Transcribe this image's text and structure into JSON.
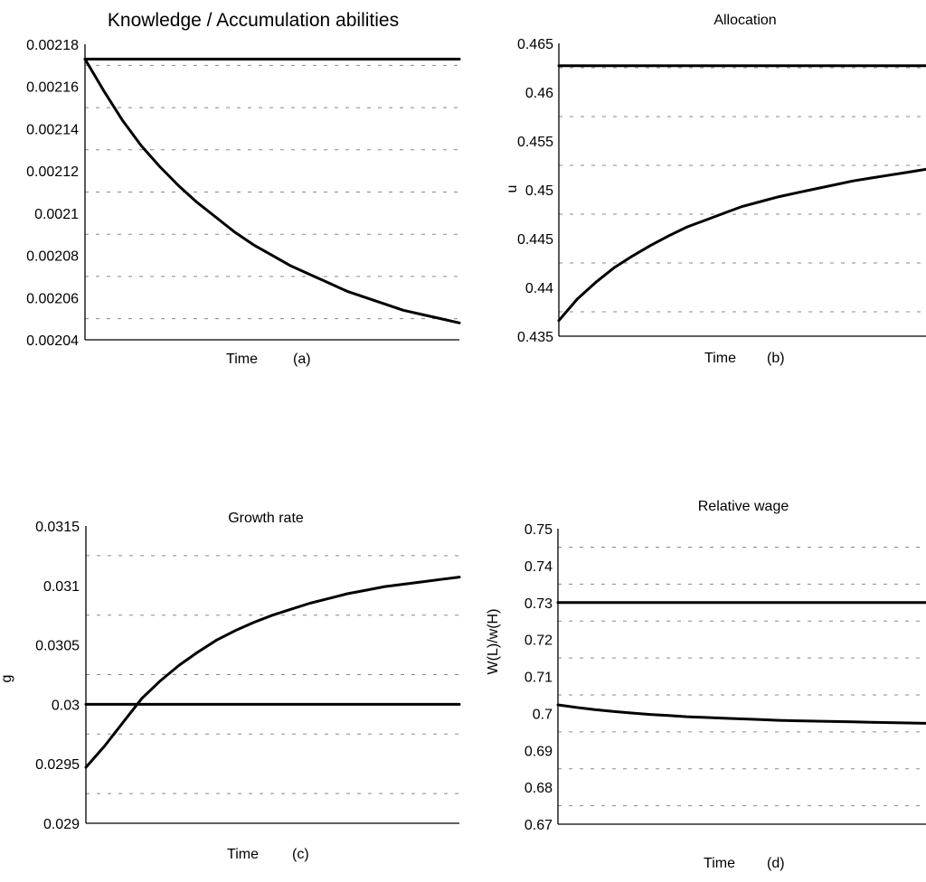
{
  "chart_data": [
    {
      "id": "a",
      "type": "line",
      "title": "Knowledge / Accumulation abilities",
      "xlabel": "Time",
      "panel_tag": "(a)",
      "ylabel": "",
      "ylim": [
        0.00204,
        0.00218
      ],
      "yticks": [
        "0.00218",
        "0.00216",
        "0.00214",
        "0.00212",
        "0.0021",
        "0.00208",
        "0.00206",
        "0.00204"
      ],
      "grid": true,
      "x": [
        0,
        5,
        10,
        15,
        20,
        25,
        30,
        35,
        40,
        45,
        50,
        55,
        60,
        65,
        70,
        75,
        80,
        85,
        90,
        95,
        100
      ],
      "series": [
        {
          "values": [
            0.002173,
            0.002158,
            0.002144,
            0.002132,
            0.002122,
            0.002113,
            0.002105,
            0.002098,
            0.002091,
            0.002085,
            0.00208,
            0.002075,
            0.002071,
            0.002067,
            0.002063,
            0.00206,
            0.002057,
            0.002054,
            0.002052,
            0.00205,
            0.002048
          ]
        },
        {
          "values": [
            0.002173,
            0.002173,
            0.002173,
            0.002173,
            0.002173,
            0.002173,
            0.002173,
            0.002173,
            0.002173,
            0.002173,
            0.002173,
            0.002173,
            0.002173,
            0.002173,
            0.002173,
            0.002173,
            0.002173,
            0.002173,
            0.002173,
            0.002173,
            0.002173
          ]
        }
      ]
    },
    {
      "id": "b",
      "type": "line",
      "title": "Allocation",
      "xlabel": "Time",
      "panel_tag": "(b)",
      "ylabel": "u",
      "ylim": [
        0.435,
        0.465
      ],
      "yticks": [
        "0.465",
        "0.46",
        "0.455",
        "0.45",
        "0.445",
        "0.44",
        "0.435"
      ],
      "grid": true,
      "x": [
        0,
        5,
        10,
        15,
        20,
        25,
        30,
        35,
        40,
        45,
        50,
        55,
        60,
        65,
        70,
        75,
        80,
        85,
        90,
        95,
        100
      ],
      "series": [
        {
          "values": [
            0.4366,
            0.4388,
            0.4405,
            0.442,
            0.4432,
            0.4443,
            0.4453,
            0.4462,
            0.4469,
            0.4476,
            0.4483,
            0.4488,
            0.4493,
            0.4497,
            0.4501,
            0.4505,
            0.4509,
            0.4512,
            0.4515,
            0.4518,
            0.4521
          ]
        },
        {
          "values": [
            0.4627,
            0.4627,
            0.4627,
            0.4627,
            0.4627,
            0.4627,
            0.4627,
            0.4627,
            0.4627,
            0.4627,
            0.4627,
            0.4627,
            0.4627,
            0.4627,
            0.4627,
            0.4627,
            0.4627,
            0.4627,
            0.4627,
            0.4627,
            0.4627
          ]
        }
      ]
    },
    {
      "id": "c",
      "type": "line",
      "title": "Growth rate",
      "xlabel": "Time",
      "panel_tag": "(c)",
      "ylabel": "g",
      "ylim": [
        0.029,
        0.0315
      ],
      "yticks": [
        "0.0315",
        "0.031",
        "0.0305",
        "0.03",
        "0.0295",
        "0.029"
      ],
      "grid": true,
      "x": [
        0,
        5,
        10,
        15,
        20,
        25,
        30,
        35,
        40,
        45,
        50,
        55,
        60,
        65,
        70,
        75,
        80,
        85,
        90,
        95,
        100
      ],
      "series": [
        {
          "values": [
            0.02947,
            0.02965,
            0.02985,
            0.03005,
            0.0302,
            0.03033,
            0.03044,
            0.03054,
            0.03062,
            0.03069,
            0.03075,
            0.0308,
            0.03085,
            0.03089,
            0.03093,
            0.03096,
            0.03099,
            0.03101,
            0.03103,
            0.03105,
            0.03107
          ]
        },
        {
          "values": [
            0.03,
            0.03,
            0.03,
            0.03,
            0.03,
            0.03,
            0.03,
            0.03,
            0.03,
            0.03,
            0.03,
            0.03,
            0.03,
            0.03,
            0.03,
            0.03,
            0.03,
            0.03,
            0.03,
            0.03,
            0.03
          ]
        }
      ]
    },
    {
      "id": "d",
      "type": "line",
      "title": "Relative wage",
      "xlabel": "Time",
      "panel_tag": "(d)",
      "ylabel": "W(L)/w(H)",
      "ylim": [
        0.67,
        0.75
      ],
      "yticks": [
        "0.75",
        "0.74",
        "0.73",
        "0.72",
        "0.71",
        "0.7",
        "0.69",
        "0.68",
        "0.67"
      ],
      "grid": true,
      "x": [
        0,
        5,
        10,
        15,
        20,
        25,
        30,
        35,
        40,
        45,
        50,
        55,
        60,
        65,
        70,
        75,
        80,
        85,
        90,
        95,
        100
      ],
      "series": [
        {
          "values": [
            0.7023,
            0.7016,
            0.701,
            0.7005,
            0.7001,
            0.6997,
            0.6994,
            0.6991,
            0.6989,
            0.6987,
            0.6985,
            0.6983,
            0.6981,
            0.698,
            0.6979,
            0.6978,
            0.6977,
            0.6976,
            0.6975,
            0.6974,
            0.6973
          ]
        },
        {
          "values": [
            0.73,
            0.73,
            0.73,
            0.73,
            0.73,
            0.73,
            0.73,
            0.73,
            0.73,
            0.73,
            0.73,
            0.73,
            0.73,
            0.73,
            0.73,
            0.73,
            0.73,
            0.73,
            0.73,
            0.73,
            0.73
          ]
        }
      ]
    }
  ]
}
